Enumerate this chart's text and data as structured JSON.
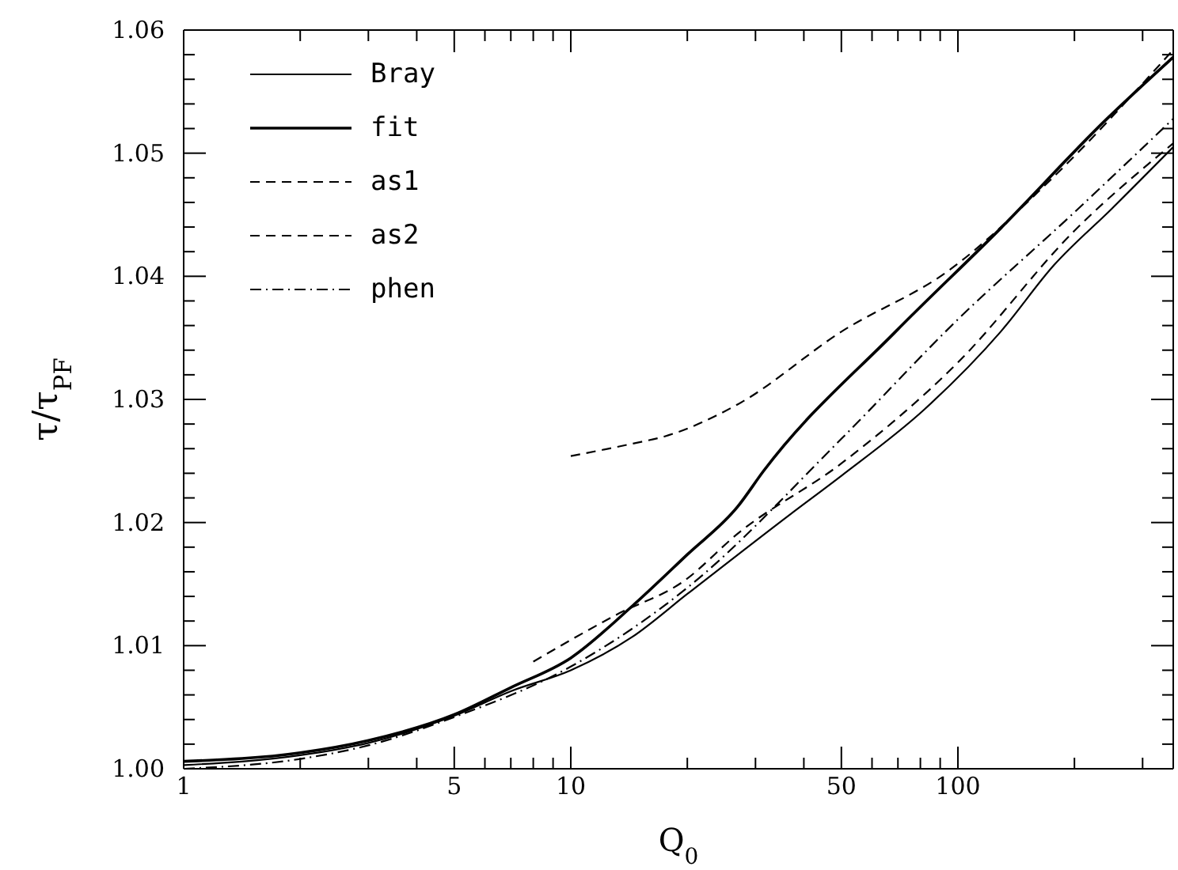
{
  "chart_data": {
    "type": "line",
    "xlabel": "Q$_{0}$",
    "ylabel": "τ/τ$_{PF}$",
    "log": "x",
    "xlim": [
      1,
      360
    ],
    "ylim": [
      1.0,
      1.06
    ],
    "xticks": [
      1,
      {
        "value": 2,
        "label": null
      },
      {
        "value": 3,
        "label": null
      },
      {
        "value": 4,
        "label": null
      },
      5,
      {
        "value": 6,
        "label": null
      },
      {
        "value": 7,
        "label": null
      },
      {
        "value": 8,
        "label": null
      },
      {
        "value": 9,
        "label": null
      },
      10,
      {
        "value": 20,
        "label": null
      },
      {
        "value": 30,
        "label": null
      },
      {
        "value": 40,
        "label": null
      },
      50,
      {
        "value": 60,
        "label": null
      },
      {
        "value": 70,
        "label": null
      },
      {
        "value": 80,
        "label": null
      },
      {
        "value": 90,
        "label": null
      },
      100,
      {
        "value": 200,
        "label": null
      },
      {
        "value": 300,
        "label": null
      }
    ],
    "yticks": [
      {
        "value": 1.0,
        "label": "1.00"
      },
      {
        "value": 1.002,
        "label": null
      },
      {
        "value": 1.004,
        "label": null
      },
      {
        "value": 1.006,
        "label": null
      },
      {
        "value": 1.008,
        "label": null
      },
      {
        "value": 1.01,
        "label": "1.01"
      },
      {
        "value": 1.012,
        "label": null
      },
      {
        "value": 1.014,
        "label": null
      },
      {
        "value": 1.016,
        "label": null
      },
      {
        "value": 1.018,
        "label": null
      },
      {
        "value": 1.02,
        "label": "1.02"
      },
      {
        "value": 1.022,
        "label": null
      },
      {
        "value": 1.024,
        "label": null
      },
      {
        "value": 1.026,
        "label": null
      },
      {
        "value": 1.028,
        "label": null
      },
      {
        "value": 1.03,
        "label": "1.03"
      },
      {
        "value": 1.032,
        "label": null
      },
      {
        "value": 1.034,
        "label": null
      },
      {
        "value": 1.036,
        "label": null
      },
      {
        "value": 1.038,
        "label": null
      },
      {
        "value": 1.04,
        "label": "1.04"
      },
      {
        "value": 1.042,
        "label": null
      },
      {
        "value": 1.044,
        "label": null
      },
      {
        "value": 1.046,
        "label": null
      },
      {
        "value": 1.048,
        "label": null
      },
      {
        "value": 1.05,
        "label": "1.05"
      },
      {
        "value": 1.052,
        "label": null
      },
      {
        "value": 1.054,
        "label": null
      },
      {
        "value": 1.056,
        "label": null
      },
      {
        "value": 1.058,
        "label": null
      },
      {
        "value": 1.06,
        "label": "1.06"
      }
    ],
    "grid": false,
    "legend": "top left",
    "marker": "none",
    "series": [
      {
        "name": "Bray",
        "color": "#000000",
        "line_style": "solid",
        "x": [
          1,
          2,
          3,
          5,
          7,
          10,
          14.4,
          20,
          37,
          50,
          82,
          129,
          177,
          250,
          360
        ],
        "values": [
          1.0003,
          1.0011,
          1.0021,
          1.0043,
          1.0063,
          1.008,
          1.0107,
          1.0142,
          1.0207,
          1.0238,
          1.0292,
          1.0355,
          1.0409,
          1.0455,
          1.0505
        ]
      },
      {
        "name": "fit",
        "color": "#000000",
        "line_style": "solid",
        "x": [
          1,
          2,
          3,
          5,
          7,
          10,
          14.4,
          20,
          27,
          31.5,
          69,
          129,
          241,
          360
        ],
        "values": [
          1.0006,
          1.0013,
          1.0023,
          1.0044,
          1.0066,
          1.009,
          1.0132,
          1.0174,
          1.0213,
          1.0242,
          1.0355,
          1.0439,
          1.0527,
          1.0578
        ]
      },
      {
        "name": "as1",
        "color": "#000000",
        "line_style": "dashed",
        "x": [
          8,
          13.1,
          19.7,
          27,
          50,
          100,
          200,
          360
        ],
        "values": [
          1.0087,
          1.0125,
          1.0153,
          1.0191,
          1.0248,
          1.033,
          1.0437,
          1.0508
        ]
      },
      {
        "name": "as2",
        "color": "#000000",
        "line_style": "dashed",
        "x": [
          10,
          14.4,
          17.5,
          27,
          50,
          95,
          177,
          360
        ],
        "values": [
          1.0254,
          1.0264,
          1.027,
          1.0296,
          1.0355,
          1.0405,
          1.0481,
          1.0584
        ]
      },
      {
        "name": "phen",
        "color": "#000000",
        "line_style": "dashdot",
        "x": [
          1,
          2,
          3,
          5,
          10,
          20,
          50,
          100,
          200,
          360
        ],
        "values": [
          1.0,
          1.0008,
          1.0019,
          1.0042,
          1.0083,
          1.0147,
          1.0268,
          1.0365,
          1.0452,
          1.0528
        ]
      }
    ]
  }
}
